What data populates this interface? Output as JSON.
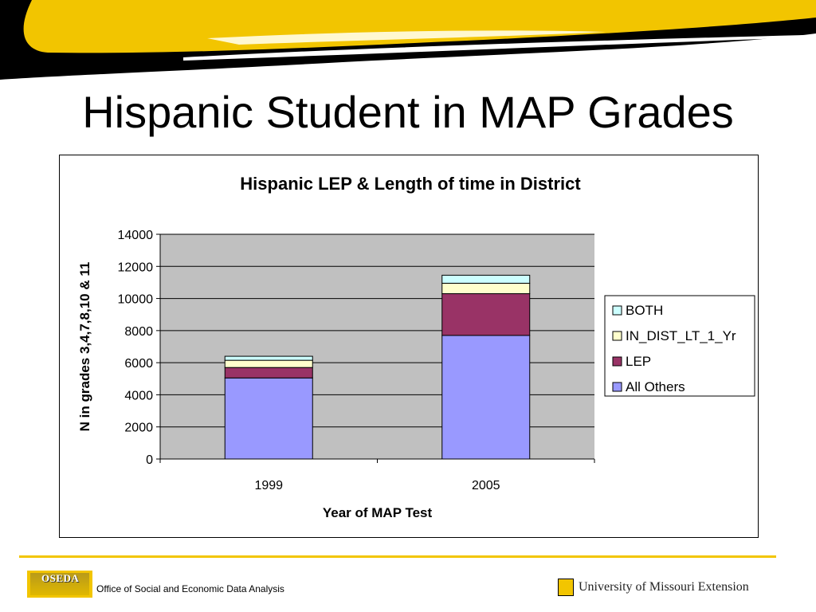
{
  "slide": {
    "title": "Hispanic Student in MAP Grades"
  },
  "colors": {
    "header_gold": "#f2c500",
    "header_black": "#000000",
    "plot_background": "#c0c0c0"
  },
  "chart_data": {
    "type": "bar",
    "stacked": true,
    "title": "Hispanic LEP & Length of time in District",
    "xlabel": "Year of MAP Test",
    "ylabel": "N in grades 3,4,7,8,10 & 11",
    "categories": [
      "1999",
      "2005"
    ],
    "ylim": [
      0,
      14000
    ],
    "yticks": [
      0,
      2000,
      4000,
      6000,
      8000,
      10000,
      12000,
      14000
    ],
    "grid": true,
    "legend_position": "right",
    "series": [
      {
        "name": "All Others",
        "color": "#9999ff",
        "values": [
          5050,
          7700
        ]
      },
      {
        "name": "LEP",
        "color": "#993366",
        "values": [
          650,
          2600
        ]
      },
      {
        "name": "IN_DIST_LT_1_Yr",
        "color": "#ffffcc",
        "values": [
          450,
          650
        ]
      },
      {
        "name": "BOTH",
        "color": "#ccffff",
        "values": [
          250,
          500
        ]
      }
    ]
  },
  "footer": {
    "logo_text": "OSEDA",
    "org_name": "Office of Social and Economic Data Analysis",
    "university": "University of Missouri Extension"
  }
}
